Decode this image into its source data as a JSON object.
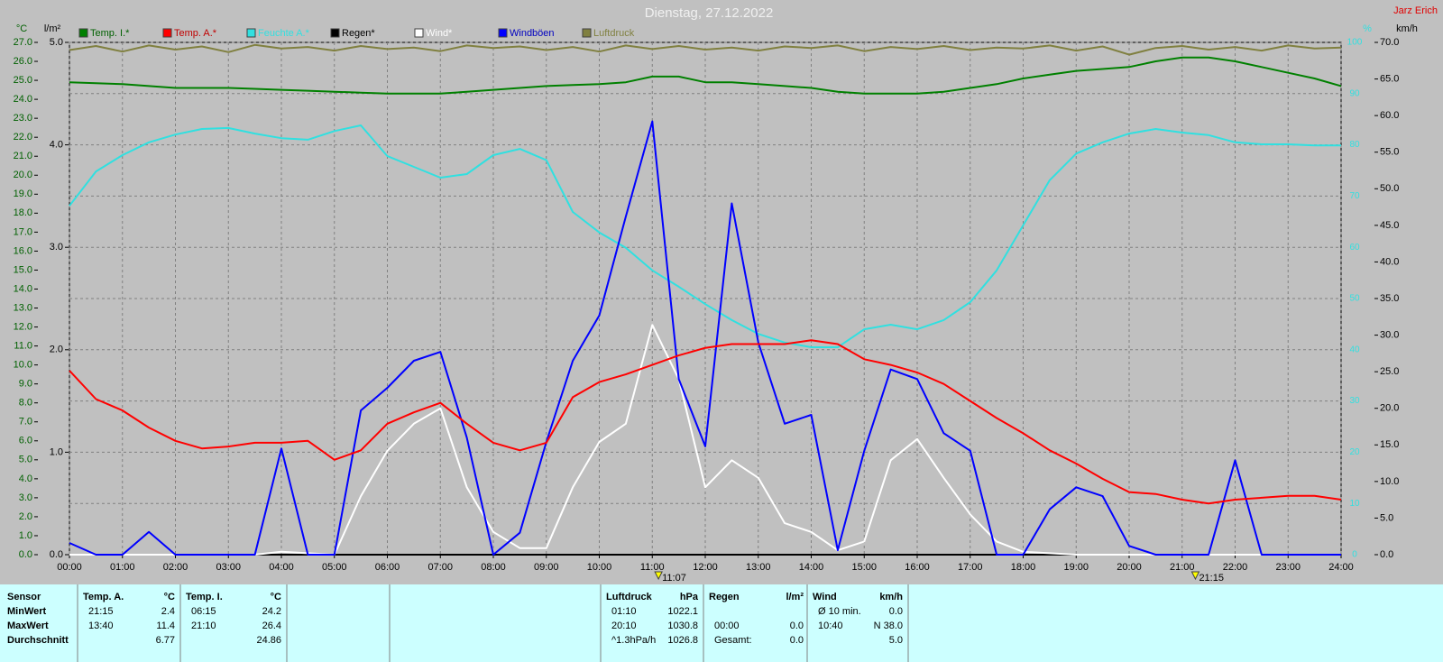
{
  "chart_data": {
    "type": "line",
    "title": "Dienstag, 27.12.2022",
    "author": "Jarz Erich",
    "y_label": "°C",
    "y4_label": "l/m²",
    "y2_label": "%",
    "y3_label": "km/h",
    "xlim": [
      0,
      24
    ],
    "xticks": [
      {
        "value": 0,
        "label": "00:00"
      },
      {
        "value": 1,
        "label": "01:00"
      },
      {
        "value": 2,
        "label": "02:00"
      },
      {
        "value": 3,
        "label": "03:00"
      },
      {
        "value": 4,
        "label": "04:00"
      },
      {
        "value": 5,
        "label": "05:00"
      },
      {
        "value": 6,
        "label": "06:00"
      },
      {
        "value": 7,
        "label": "07:00"
      },
      {
        "value": 8,
        "label": "08:00"
      },
      {
        "value": 9,
        "label": "09:00"
      },
      {
        "value": 10,
        "label": "10:00"
      },
      {
        "value": 11,
        "label": "11:00"
      },
      {
        "value": 12,
        "label": "12:00"
      },
      {
        "value": 13,
        "label": "13:00"
      },
      {
        "value": 14,
        "label": "14:00"
      },
      {
        "value": 15,
        "label": "15:00"
      },
      {
        "value": 16,
        "label": "16:00"
      },
      {
        "value": 17,
        "label": "17:00"
      },
      {
        "value": 18,
        "label": "18:00"
      },
      {
        "value": 19,
        "label": "19:00"
      },
      {
        "value": 20,
        "label": "20:00"
      },
      {
        "value": 21,
        "label": "21:00"
      },
      {
        "value": 22,
        "label": "22:00"
      },
      {
        "value": 23,
        "label": "23:00"
      },
      {
        "value": 24,
        "label": "24:00"
      }
    ],
    "ylim": [
      0,
      27
    ],
    "yticks": [
      {
        "value": 0,
        "label": "0.0"
      },
      {
        "value": 1,
        "label": "1.0"
      },
      {
        "value": 2,
        "label": "2.0"
      },
      {
        "value": 3,
        "label": "3.0"
      },
      {
        "value": 4,
        "label": "4.0"
      },
      {
        "value": 5,
        "label": "5.0"
      },
      {
        "value": 6,
        "label": "6.0"
      },
      {
        "value": 7,
        "label": "7.0"
      },
      {
        "value": 8,
        "label": "8.0"
      },
      {
        "value": 9,
        "label": "9.0"
      },
      {
        "value": 10,
        "label": "10.0"
      },
      {
        "value": 11,
        "label": "11.0"
      },
      {
        "value": 12,
        "label": "12.0"
      },
      {
        "value": 13,
        "label": "13.0"
      },
      {
        "value": 14,
        "label": "14.0"
      },
      {
        "value": 15,
        "label": "15.0"
      },
      {
        "value": 16,
        "label": "16.0"
      },
      {
        "value": 17,
        "label": "17.0"
      },
      {
        "value": 18,
        "label": "18.0"
      },
      {
        "value": 19,
        "label": "19.0"
      },
      {
        "value": 20,
        "label": "20.0"
      },
      {
        "value": 21,
        "label": "21.0"
      },
      {
        "value": 22,
        "label": "22.0"
      },
      {
        "value": 23,
        "label": "23.0"
      },
      {
        "value": 24,
        "label": "24.0"
      },
      {
        "value": 25,
        "label": "25.0"
      },
      {
        "value": 26,
        "label": "26.0"
      },
      {
        "value": 27,
        "label": "27.0"
      }
    ],
    "y4lim": [
      0,
      5
    ],
    "y4ticks": [
      {
        "value": 0,
        "label": "0.0"
      },
      {
        "value": 1,
        "label": "1.0"
      },
      {
        "value": 2,
        "label": "2.0"
      },
      {
        "value": 3,
        "label": "3.0"
      },
      {
        "value": 4,
        "label": "4.0"
      },
      {
        "value": 5,
        "label": "5.0"
      }
    ],
    "y2lim": [
      0,
      100
    ],
    "y2ticks": [
      0,
      10,
      20,
      30,
      40,
      50,
      60,
      70,
      80,
      90,
      100
    ],
    "y3lim": [
      0,
      70
    ],
    "y3ticks": [
      {
        "value": 0,
        "label": "0.0"
      },
      {
        "value": 5,
        "label": "5.0"
      },
      {
        "value": 10,
        "label": "10.0"
      },
      {
        "value": 15,
        "label": "15.0"
      },
      {
        "value": 20,
        "label": "20.0"
      },
      {
        "value": 25,
        "label": "25.0"
      },
      {
        "value": 30,
        "label": "30.0"
      },
      {
        "value": 35,
        "label": "35.0"
      },
      {
        "value": 40,
        "label": "40.0"
      },
      {
        "value": 45,
        "label": "45.0"
      },
      {
        "value": 50,
        "label": "50.0"
      },
      {
        "value": 55,
        "label": "55.0"
      },
      {
        "value": 60,
        "label": "60.0"
      },
      {
        "value": 65,
        "label": "65.0"
      },
      {
        "value": 70,
        "label": "70.0"
      }
    ],
    "grid": true,
    "x": [
      0,
      0.5,
      1,
      1.5,
      2,
      2.5,
      3,
      3.5,
      4,
      4.5,
      5,
      5.5,
      6,
      6.5,
      7,
      7.5,
      8,
      8.5,
      9,
      9.5,
      10,
      10.5,
      11,
      11.5,
      12,
      12.5,
      13,
      13.5,
      14,
      14.5,
      15,
      15.5,
      16,
      16.5,
      17,
      17.5,
      18,
      18.5,
      19,
      19.5,
      20,
      20.5,
      21,
      21.5,
      22,
      22.5,
      23,
      23.5,
      24
    ],
    "series": [
      {
        "name": "Temp. I.*",
        "color": "#008000",
        "axis": "y",
        "values": [
          24.9,
          24.85,
          24.8,
          24.7,
          24.6,
          24.6,
          24.6,
          24.55,
          24.5,
          24.45,
          24.4,
          24.35,
          24.3,
          24.3,
          24.3,
          24.4,
          24.5,
          24.6,
          24.7,
          24.75,
          24.8,
          24.9,
          25.2,
          25.2,
          24.9,
          24.9,
          24.8,
          24.7,
          24.6,
          24.4,
          24.3,
          24.3,
          24.3,
          24.4,
          24.6,
          24.8,
          25.1,
          25.3,
          25.5,
          25.6,
          25.7,
          26.0,
          26.2,
          26.2,
          26.0,
          25.7,
          25.4,
          25.1,
          24.7
        ]
      },
      {
        "name": "Temp. A.*",
        "color": "#ff0000",
        "axis": "y",
        "values": [
          9.7,
          8.2,
          7.6,
          6.7,
          6.0,
          5.6,
          5.7,
          5.9,
          5.9,
          6.0,
          5.0,
          5.5,
          6.9,
          7.5,
          8.0,
          6.9,
          5.9,
          5.5,
          5.9,
          8.3,
          9.1,
          9.5,
          10.0,
          10.5,
          10.9,
          11.1,
          11.1,
          11.1,
          11.3,
          11.1,
          10.3,
          10.0,
          9.6,
          9.0,
          8.1,
          7.2,
          6.4,
          5.5,
          4.8,
          4.0,
          3.3,
          3.2,
          2.9,
          2.7,
          2.9,
          3.0,
          3.1,
          3.1,
          2.9
        ]
      },
      {
        "name": "Feuchte A.*",
        "color": "#30e0e0",
        "axis": "y2",
        "values": [
          68.1,
          74.8,
          78,
          80.5,
          82,
          83.1,
          83.3,
          82.2,
          81.3,
          81,
          82.7,
          83.8,
          77.8,
          75.7,
          73.6,
          74.3,
          78,
          79.2,
          77,
          66.9,
          62.9,
          59.9,
          55.5,
          52.3,
          48.9,
          45.8,
          43.1,
          41.4,
          40.5,
          40.5,
          44,
          44.9,
          44,
          45.8,
          49.3,
          55.5,
          64.3,
          73.1,
          78.3,
          80.5,
          82.2,
          83.1,
          82.4,
          81.9,
          80.5,
          80.1,
          80.1,
          79.9,
          79.9
        ]
      },
      {
        "name": "Regen*",
        "color": "#000000",
        "axis": "y4",
        "values": [
          0,
          0,
          0,
          0,
          0,
          0,
          0,
          0,
          0,
          0,
          0,
          0,
          0,
          0,
          0,
          0,
          0,
          0,
          0,
          0,
          0,
          0,
          0,
          0,
          0,
          0,
          0,
          0,
          0,
          0,
          0,
          0,
          0,
          0,
          0,
          0,
          0,
          0,
          0,
          0,
          0,
          0,
          0,
          0,
          0,
          0,
          0,
          0,
          0
        ]
      },
      {
        "name": "Wind*",
        "color": "#ffffff",
        "axis": "y3",
        "values": [
          0,
          0,
          0,
          0,
          0,
          0,
          0,
          0,
          0.4,
          0.2,
          0,
          8,
          14.2,
          17.9,
          20,
          9.2,
          3.1,
          0.9,
          0.9,
          9.2,
          15.4,
          17.9,
          31.4,
          24,
          9.2,
          12.9,
          10.5,
          4.3,
          3.1,
          0.6,
          1.8,
          12.9,
          15.8,
          10.5,
          5.5,
          1.8,
          0.4,
          0.2,
          0,
          0,
          0,
          0,
          0,
          0,
          0,
          0,
          0,
          0,
          0
        ]
      },
      {
        "name": "Windböen",
        "color": "#0000ff",
        "axis": "y3",
        "values": [
          1.6,
          0,
          0,
          3.1,
          0,
          0,
          0,
          0,
          14.5,
          0,
          0,
          19.7,
          22.8,
          26.5,
          27.7,
          16,
          0,
          3,
          15.4,
          26.5,
          32.7,
          46.2,
          59.2,
          24,
          14.8,
          48,
          29,
          17.9,
          19.1,
          0.6,
          14.2,
          25.3,
          24,
          16.6,
          14.2,
          0,
          0,
          6.2,
          9.2,
          8,
          1.2,
          0,
          0,
          0,
          12.9,
          0,
          0,
          0,
          0
        ]
      },
      {
        "name": "Luftdruck",
        "color": "#808040",
        "axis": "y2",
        "values": [
          98.5,
          99.3,
          98.2,
          99.4,
          98.6,
          99.2,
          98.1,
          99.5,
          98.8,
          99.1,
          98.4,
          99.3,
          98.7,
          99.0,
          98.3,
          99.4,
          98.9,
          99.2,
          98.5,
          99.1,
          98.2,
          99.4,
          98.7,
          99.3,
          98.6,
          99.0,
          98.4,
          99.2,
          98.9,
          99.4,
          98.3,
          99.1,
          98.7,
          99.3,
          98.5,
          99.0,
          98.8,
          99.4,
          98.4,
          99.2,
          97.6,
          98.9,
          99.3,
          98.6,
          99.1,
          98.4,
          99.4,
          98.8,
          99.0
        ]
      }
    ],
    "markers": [
      {
        "value": 11.117,
        "label": "11:07"
      },
      {
        "value": 21.25,
        "label": "21:15"
      }
    ]
  },
  "table": {
    "row_labels": [
      "Sensor",
      "MinWert",
      "MaxWert",
      "Durchschnitt"
    ],
    "groups": [
      {
        "name": "Temp. A.",
        "unit": "°C",
        "cells": [
          {
            "time": "21:15",
            "value": "2.4"
          },
          {
            "time": "13:40",
            "value": "11.4"
          },
          {
            "value": "6.77"
          }
        ]
      },
      {
        "name": "Temp. I.",
        "unit": "°C",
        "cells": [
          {
            "time": "06:15",
            "value": "24.2"
          },
          {
            "time": "21:10",
            "value": "26.4"
          },
          {
            "value": "24.86"
          }
        ]
      },
      {
        "name": "Luftdruck",
        "unit": "hPa",
        "cells": [
          {
            "time": "01:10",
            "value": "1022.1"
          },
          {
            "time": "20:10",
            "value": "1030.8"
          },
          {
            "time": "^1.3hPa/h",
            "value": "1026.8"
          }
        ]
      },
      {
        "name": "Regen",
        "unit": "l/m²",
        "cells": [
          null,
          {
            "time": "00:00",
            "value": "0.0"
          },
          {
            "time": "Gesamt:",
            "value": "0.0"
          }
        ]
      },
      {
        "name": "Wind",
        "unit": "km/h",
        "cells": [
          {
            "time": "Ø 10 min.",
            "value": "0.0"
          },
          {
            "time": "10:40",
            "value": "N 38.0"
          },
          {
            "value": "5.0"
          }
        ]
      }
    ]
  }
}
